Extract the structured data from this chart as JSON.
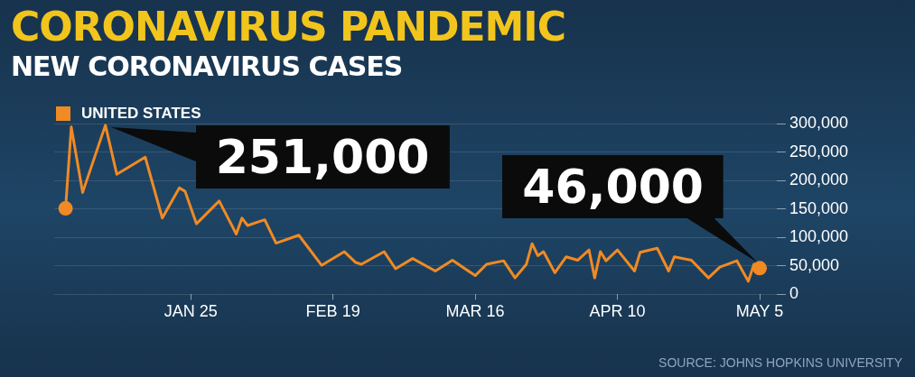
{
  "chart_data": {
    "type": "line",
    "title": "CORONAVIRUS PANDEMIC",
    "subtitle": "NEW CORONAVIRUS CASES",
    "x": [
      "--01-03",
      "--01-04",
      "--01-06",
      "--01-10",
      "--01-12",
      "--01-17",
      "--01-20",
      "--01-23",
      "--01-24",
      "--01-26",
      "--01-30",
      "--02-02",
      "--02-03",
      "--02-04",
      "--02-07",
      "--02-09",
      "--02-13",
      "--02-17",
      "--02-21",
      "--02-23",
      "--02-24",
      "--02-28",
      "--03-02",
      "--03-05",
      "--03-09",
      "--03-12",
      "--03-16",
      "--03-18",
      "--03-21",
      "--03-23",
      "--03-25",
      "--03-26",
      "--03-27",
      "--03-28",
      "--03-30",
      "--04-01",
      "--04-03",
      "--04-05",
      "--04-06",
      "--04-07",
      "--04-08",
      "--04-10",
      "--04-13",
      "--04-14",
      "--04-17",
      "--04-19",
      "--04-20",
      "--04-23",
      "--04-26",
      "--04-28",
      "--05-01",
      "--05-03",
      "--05-04",
      "--05-05"
    ],
    "series": [
      {
        "name": "UNITED STATES",
        "color": "#f08a24",
        "values": [
          151000,
          294000,
          179000,
          297000,
          211000,
          241000,
          134000,
          187000,
          181000,
          124000,
          164000,
          106000,
          134000,
          121000,
          131000,
          90000,
          104000,
          51000,
          75000,
          56000,
          53000,
          75000,
          45000,
          63000,
          41000,
          60000,
          33000,
          53000,
          59000,
          29000,
          53000,
          89000,
          68000,
          75000,
          38000,
          66000,
          60000,
          78000,
          29000,
          75000,
          59000,
          78000,
          41000,
          74000,
          81000,
          41000,
          66000,
          60000,
          29000,
          48000,
          59000,
          23000,
          53000,
          46000
        ]
      }
    ],
    "xlim": [
      "--01-01",
      "--05-08"
    ],
    "xticks": [
      {
        "value": "--01-25",
        "label": "JAN 25"
      },
      {
        "value": "--02-19",
        "label": "FEB 19"
      },
      {
        "value": "--03-16",
        "label": "MAR 16"
      },
      {
        "value": "--04-10",
        "label": "APR 10"
      },
      {
        "value": "--05-05",
        "label": "MAY 5"
      }
    ],
    "ylim": [
      0,
      300000
    ],
    "yticks": [
      {
        "value": 0,
        "label": "0"
      },
      {
        "value": 50000,
        "label": "50,000"
      },
      {
        "value": 100000,
        "label": "100,000"
      },
      {
        "value": 150000,
        "label": "150,000"
      },
      {
        "value": 200000,
        "label": "200,000"
      },
      {
        "value": 250000,
        "label": "250,000"
      },
      {
        "value": 300000,
        "label": "300,000"
      }
    ],
    "grid": "y",
    "legend": "top left",
    "annotations": [
      {
        "text": "251,000",
        "x": "--01-10",
        "y": 297000
      },
      {
        "text": "46,000",
        "x": "--05-05",
        "y": 46000
      },
      "SOURCE: JOHNS HOPKINS UNIVERSITY"
    ]
  }
}
